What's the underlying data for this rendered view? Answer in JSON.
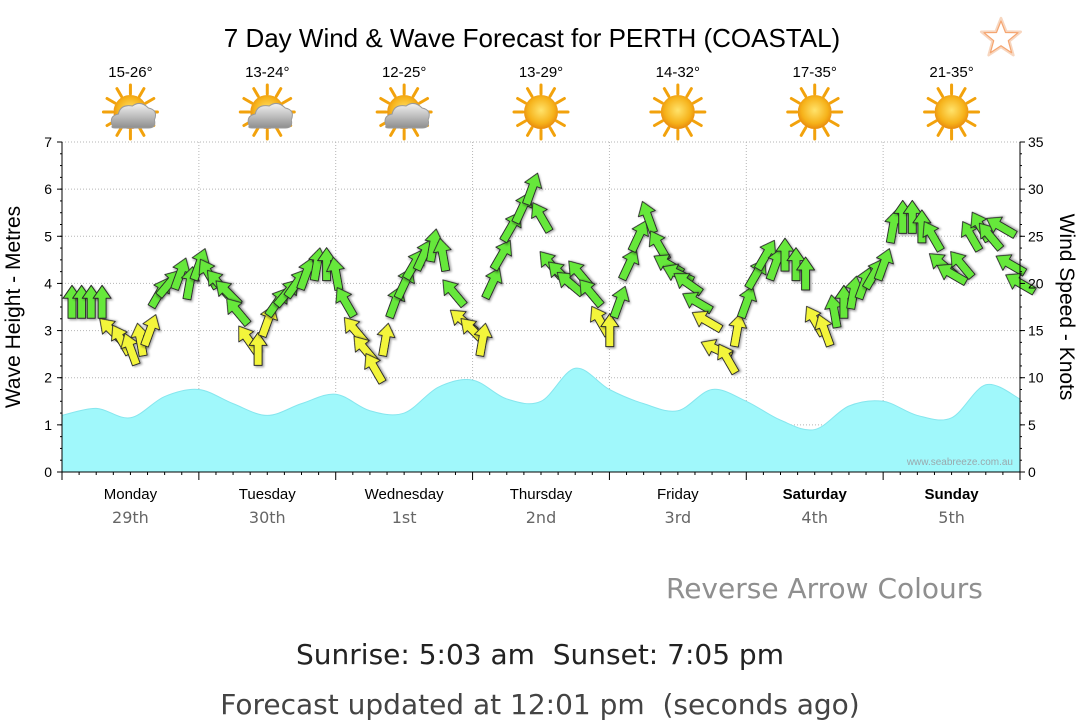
{
  "chart_data": {
    "type": "area+wind-arrows",
    "title": "7 Day Wind & Wave Forecast for PERTH (COASTAL)",
    "ylabel_left": "Wave Height - Metres",
    "ylabel_right": "Wind Speed - Knots",
    "ylim_left": [
      0,
      7
    ],
    "ylim_right": [
      0,
      35
    ],
    "left_ticks": [
      "0",
      "1",
      "2",
      "3",
      "4",
      "5",
      "6",
      "7"
    ],
    "right_ticks": [
      "0",
      "5",
      "10",
      "15",
      "20",
      "25",
      "30",
      "35"
    ],
    "grid": true,
    "watermark": "www.seabreeze.com.au",
    "days": [
      {
        "name": "Monday",
        "date": "29th",
        "temp": "15-26°",
        "weather": "partly-cloudy",
        "bold": false
      },
      {
        "name": "Tuesday",
        "date": "30th",
        "temp": "13-24°",
        "weather": "partly-cloudy",
        "bold": false
      },
      {
        "name": "Wednesday",
        "date": "1st",
        "temp": "12-25°",
        "weather": "partly-cloudy",
        "bold": false
      },
      {
        "name": "Thursday",
        "date": "2nd",
        "temp": "13-29°",
        "weather": "sunny",
        "bold": false
      },
      {
        "name": "Friday",
        "date": "3rd",
        "temp": "14-32°",
        "weather": "sunny",
        "bold": false
      },
      {
        "name": "Saturday",
        "date": "4th",
        "temp": "17-35°",
        "weather": "sunny",
        "bold": true
      },
      {
        "name": "Sunday",
        "date": "5th",
        "temp": "21-35°",
        "weather": "sunny",
        "bold": true
      }
    ],
    "wave_series": {
      "name": "Wave Height",
      "color": "#a0f8fb",
      "x_days": [
        0,
        0.25,
        0.5,
        0.75,
        1.0,
        1.25,
        1.5,
        1.75,
        2.0,
        2.25,
        2.5,
        2.75,
        3.0,
        3.25,
        3.5,
        3.75,
        4.0,
        4.25,
        4.5,
        4.75,
        5.0,
        5.25,
        5.5,
        5.75,
        6.0,
        6.25,
        6.5,
        6.75,
        7.0
      ],
      "values": [
        1.2,
        1.35,
        1.15,
        1.6,
        1.75,
        1.45,
        1.2,
        1.45,
        1.65,
        1.3,
        1.25,
        1.8,
        1.95,
        1.55,
        1.5,
        2.2,
        1.75,
        1.45,
        1.3,
        1.75,
        1.5,
        1.1,
        0.9,
        1.4,
        1.5,
        1.2,
        1.15,
        1.85,
        1.55
      ]
    },
    "wind_series": {
      "name": "Wind Speed",
      "color_strong": "#66e83a",
      "color_light": "#f3f53a",
      "x_days": [
        0.0,
        0.07,
        0.14,
        0.22,
        0.29,
        0.36,
        0.43,
        0.5,
        0.57,
        0.64,
        0.71,
        0.79,
        0.86,
        0.93,
        1.0,
        1.07,
        1.14,
        1.21,
        1.29,
        1.36,
        1.43,
        1.5,
        1.57,
        1.64,
        1.71,
        1.79,
        1.86,
        1.93,
        2.0,
        2.07,
        2.14,
        2.21,
        2.29,
        2.36,
        2.43,
        2.5,
        2.57,
        2.64,
        2.71,
        2.79,
        2.86,
        2.93,
        3.0,
        3.07,
        3.14,
        3.21,
        3.29,
        3.36,
        3.43,
        3.5,
        3.57,
        3.64,
        3.71,
        3.79,
        3.86,
        3.93,
        4.0,
        4.07,
        4.14,
        4.21,
        4.29,
        4.36,
        4.43,
        4.5,
        4.57,
        4.64,
        4.71,
        4.79,
        4.86,
        4.93,
        5.0,
        5.07,
        5.14,
        5.21,
        5.29,
        5.36,
        5.43,
        5.5,
        5.57,
        5.64,
        5.71,
        5.79,
        5.86,
        5.93,
        6.0,
        6.07,
        6.14,
        6.21,
        6.29,
        6.36,
        6.43,
        6.5,
        6.57,
        6.64,
        6.71,
        6.79,
        6.86,
        6.93
      ],
      "values": [
        18,
        18,
        18,
        18,
        15,
        14,
        13,
        14,
        15,
        19,
        20,
        21,
        20,
        22,
        21,
        20,
        19,
        17,
        14,
        13,
        16,
        18,
        19,
        20,
        21,
        22,
        22,
        21,
        18,
        15,
        13,
        11,
        14,
        18,
        20,
        22,
        23,
        24,
        23,
        19,
        16,
        15,
        14,
        20,
        23,
        26,
        28,
        30,
        27,
        22,
        21,
        20,
        21,
        19,
        16,
        15,
        18,
        22,
        25,
        27,
        24,
        22,
        21,
        20,
        18,
        16,
        13,
        12,
        15,
        18,
        21,
        23,
        22,
        23,
        22,
        21,
        16,
        15,
        17,
        18,
        19,
        20,
        21,
        22,
        26,
        27,
        27,
        26,
        25,
        22,
        21,
        22,
        25,
        26,
        25,
        26,
        22,
        20
      ],
      "direction_deg": [
        0,
        0,
        0,
        0,
        315,
        330,
        340,
        350,
        20,
        30,
        40,
        20,
        10,
        20,
        330,
        320,
        315,
        320,
        325,
        0,
        20,
        35,
        40,
        35,
        20,
        10,
        0,
        350,
        330,
        320,
        320,
        330,
        10,
        20,
        25,
        30,
        25,
        10,
        350,
        320,
        310,
        315,
        10,
        25,
        30,
        30,
        25,
        20,
        330,
        320,
        315,
        310,
        320,
        320,
        330,
        0,
        20,
        25,
        25,
        340,
        330,
        300,
        295,
        305,
        300,
        300,
        295,
        330,
        10,
        20,
        30,
        30,
        20,
        0,
        0,
        0,
        330,
        340,
        350,
        0,
        10,
        20,
        30,
        20,
        10,
        0,
        0,
        0,
        330,
        310,
        300,
        320,
        330,
        330,
        320,
        300,
        300,
        300
      ]
    }
  },
  "favorite": {
    "icon": "star-outline-icon",
    "color": "#f5a570"
  },
  "reverse_link": {
    "label": "Reverse Arrow Colours"
  },
  "sun": {
    "text": "Sunrise: 5:03 am  Sunset: 7:05 pm"
  },
  "updated": {
    "text": "Forecast updated at 12:01 pm  (seconds ago)"
  }
}
